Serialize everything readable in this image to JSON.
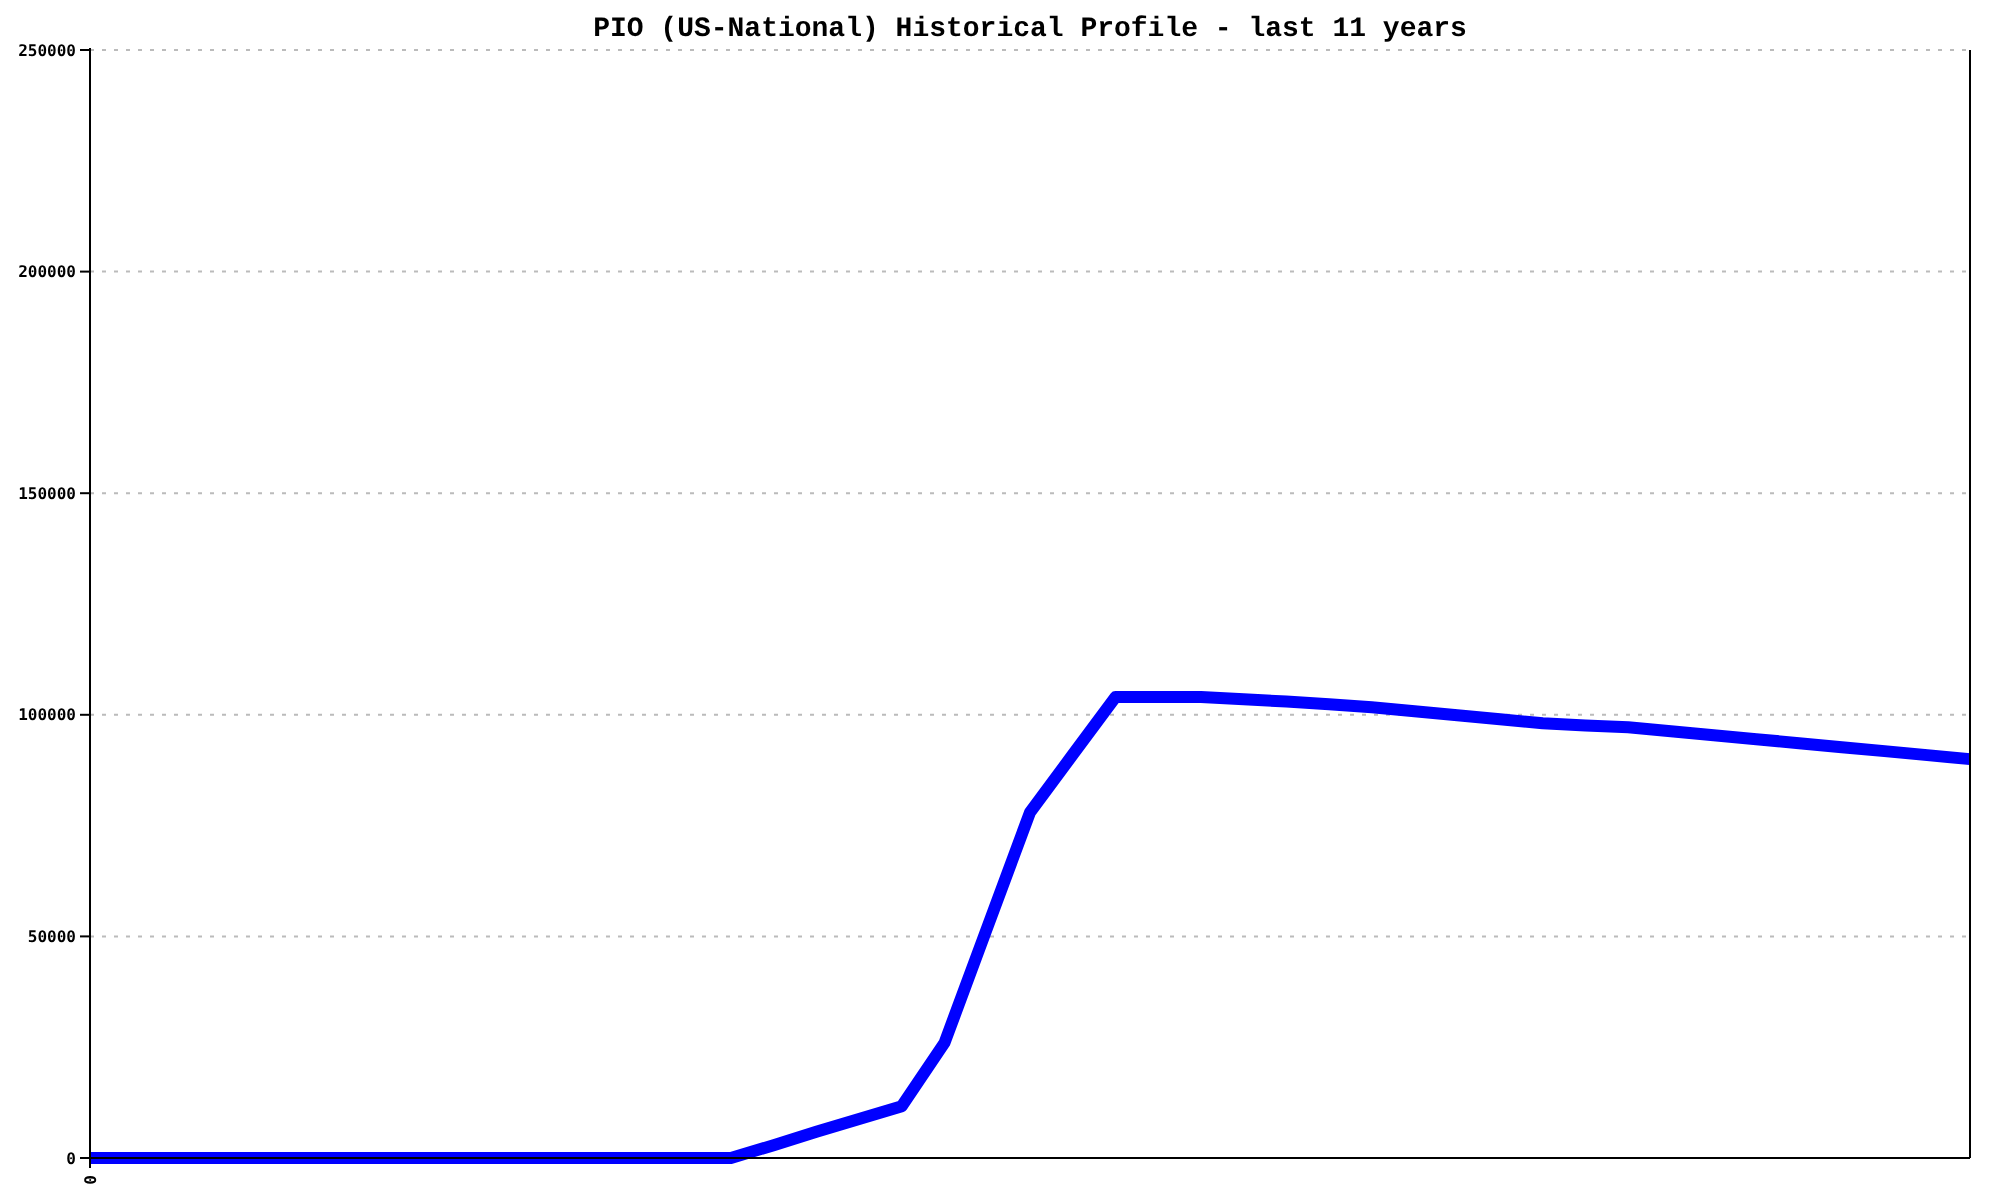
{
  "chart_data": {
    "type": "line",
    "title": "PIO (US-National) Historical Profile - last 11 years",
    "categories": [
      "0",
      null,
      null,
      null,
      null,
      null,
      null,
      null,
      null,
      null,
      null,
      null,
      null,
      null,
      null,
      null,
      null,
      null,
      null,
      null,
      null,
      null,
      null,
      null,
      null,
      null,
      null,
      null,
      null,
      null,
      null,
      null,
      null,
      null,
      null,
      null,
      null,
      null,
      null,
      null,
      null,
      null,
      null,
      null,
      null
    ],
    "values": [
      0,
      0,
      0,
      0,
      0,
      0,
      0,
      0,
      0,
      0,
      0,
      0,
      0,
      0,
      0,
      0,
      2900,
      5900,
      8800,
      11700,
      26000,
      52000,
      78000,
      91000,
      104000,
      104000,
      104000,
      103500,
      103000,
      102400,
      101700,
      100800,
      99900,
      99000,
      98100,
      97600,
      97200,
      96300,
      95400,
      94500,
      93600,
      92700,
      91800,
      90900,
      90000
    ],
    "color": "#0000ff",
    "line_style": "solid",
    "ylim": [
      0,
      250000
    ],
    "yticks": [
      0,
      50000,
      100000,
      150000,
      200000,
      250000
    ],
    "grid": "y"
  }
}
